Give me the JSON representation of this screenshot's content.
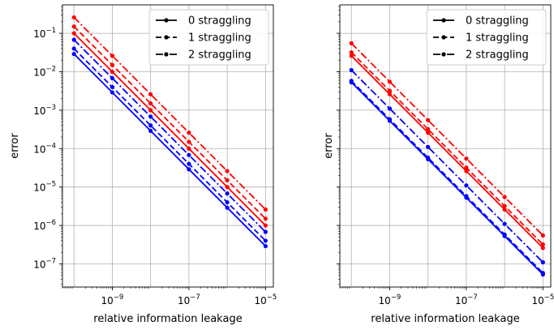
{
  "chart_data": [
    {
      "type": "line",
      "xlabel": "relative information leakage",
      "ylabel": "error",
      "xscale": "log",
      "yscale": "log",
      "xlim": [
        5e-11,
        1.6e-05
      ],
      "ylim": [
        2.5e-08,
        0.55
      ],
      "xticks": [
        {
          "value": 1e-09,
          "label": "10",
          "exp": "−9"
        },
        {
          "value": 1e-07,
          "label": "10",
          "exp": "−7"
        },
        {
          "value": 1e-05,
          "label": "10",
          "exp": "−5"
        }
      ],
      "yticks": [
        {
          "value": 1e-07,
          "label": "10",
          "exp": "−7"
        },
        {
          "value": 1e-06,
          "label": "10",
          "exp": "−6"
        },
        {
          "value": 1e-05,
          "label": "10",
          "exp": "−5"
        },
        {
          "value": 0.0001,
          "label": "10",
          "exp": "−4"
        },
        {
          "value": 0.001,
          "label": "10",
          "exp": "−3"
        },
        {
          "value": 0.01,
          "label": "10",
          "exp": "−2"
        },
        {
          "value": 0.1,
          "label": "10",
          "exp": "−1"
        }
      ],
      "grid": true,
      "legend_position": "top-right",
      "x": [
        1e-10,
        1e-09,
        1e-08,
        1e-07,
        1e-06,
        1e-05
      ],
      "series": [
        {
          "name": "0 straggling",
          "style": "solid",
          "color": "#0000ff",
          "values": [
            0.029,
            0.0029,
            0.00029,
            2.9e-05,
            2.9e-06,
            2.9e-07
          ]
        },
        {
          "name": "1 straggling",
          "style": "dashed",
          "color": "#0000ff",
          "values": [
            0.04,
            0.004,
            0.0004,
            4e-05,
            4e-06,
            4e-07
          ]
        },
        {
          "name": "2 straggling",
          "style": "dashdot",
          "color": "#0000ff",
          "values": [
            0.068,
            0.0068,
            0.00068,
            6.8e-05,
            6.8e-06,
            6.8e-07
          ]
        },
        {
          "name": "",
          "style": "solid",
          "color": "#ff0000",
          "values": [
            0.1,
            0.01,
            0.001,
            0.0001,
            1e-05,
            1e-06
          ]
        },
        {
          "name": "",
          "style": "dashed",
          "color": "#ff0000",
          "values": [
            0.15,
            0.015,
            0.0015,
            0.00015,
            1.5e-05,
            1.5e-06
          ]
        },
        {
          "name": "",
          "style": "dashdot",
          "color": "#ff0000",
          "values": [
            0.26,
            0.026,
            0.0026,
            0.00026,
            2.6e-05,
            2.6e-06
          ]
        }
      ]
    },
    {
      "type": "line",
      "xlabel": "relative information leakage",
      "ylabel": "error",
      "xscale": "log",
      "yscale": "log",
      "xlim": [
        5e-11,
        1.6e-05
      ],
      "ylim": [
        2.5e-08,
        0.55
      ],
      "xticks": [
        {
          "value": 1e-09,
          "label": "10",
          "exp": "−9"
        },
        {
          "value": 1e-07,
          "label": "10",
          "exp": "−7"
        },
        {
          "value": 1e-05,
          "label": "10",
          "exp": "−5"
        }
      ],
      "yticks": [],
      "grid": true,
      "legend_position": "top-right",
      "x": [
        1e-10,
        1e-09,
        1e-08,
        1e-07,
        1e-06,
        1e-05
      ],
      "series": [
        {
          "name": "0 straggling",
          "style": "solid",
          "color": "#0000ff",
          "values": [
            0.0053,
            0.00053,
            5.3e-05,
            5.3e-06,
            5.3e-07,
            5.3e-08
          ]
        },
        {
          "name": "1 straggling",
          "style": "dashed",
          "color": "#0000ff",
          "values": [
            0.0058,
            0.00058,
            5.8e-05,
            5.8e-06,
            5.8e-07,
            5.8e-08
          ]
        },
        {
          "name": "2 straggling",
          "style": "dashdot",
          "color": "#0000ff",
          "values": [
            0.011,
            0.0011,
            0.00011,
            1.1e-05,
            1.1e-06,
            1.1e-07
          ]
        },
        {
          "name": "",
          "style": "solid",
          "color": "#ff0000",
          "values": [
            0.026,
            0.0026,
            0.00026,
            2.6e-05,
            2.6e-06,
            2.6e-07
          ]
        },
        {
          "name": "",
          "style": "dashed",
          "color": "#ff0000",
          "values": [
            0.032,
            0.0032,
            0.00032,
            3.2e-05,
            3.2e-06,
            3.2e-07
          ]
        },
        {
          "name": "",
          "style": "dashdot",
          "color": "#ff0000",
          "values": [
            0.055,
            0.0055,
            0.00055,
            5.5e-05,
            5.5e-06,
            5.5e-07
          ]
        }
      ]
    }
  ]
}
